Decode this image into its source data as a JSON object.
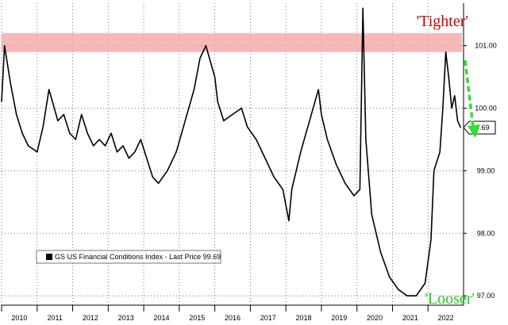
{
  "chart_data": {
    "type": "line",
    "title": "",
    "xlabel": "",
    "ylabel": "",
    "ylim": [
      96.85,
      101.68
    ],
    "xlim": [
      "2010-01-01",
      "2023-01-01"
    ],
    "x_ticks": [
      "2010",
      "2011",
      "2012",
      "2013",
      "2014",
      "2015",
      "2016",
      "2017",
      "2018",
      "2019",
      "2020",
      "2021",
      "2022"
    ],
    "y_ticks": [
      "97.00",
      "98.00",
      "99.00",
      "100.00",
      "101.00"
    ],
    "grid": true,
    "legend": {
      "placement": "bottom-left",
      "entries": [
        "GS US Financial Conditions Index - Last Price 99.69"
      ]
    },
    "series": [
      {
        "name": "GS US Financial Conditions Index",
        "color": "#000000",
        "x": [
          "2010-01",
          "2010-02",
          "2010-04",
          "2010-06",
          "2010-08",
          "2010-10",
          "2011-01",
          "2011-03",
          "2011-05",
          "2011-08",
          "2011-10",
          "2011-12",
          "2012-02",
          "2012-04",
          "2012-06",
          "2012-08",
          "2012-10",
          "2012-12",
          "2013-02",
          "2013-04",
          "2013-06",
          "2013-08",
          "2013-10",
          "2013-12",
          "2014-02",
          "2014-04",
          "2014-06",
          "2014-09",
          "2014-12",
          "2015-03",
          "2015-06",
          "2015-08",
          "2015-10",
          "2016-01",
          "2016-02",
          "2016-04",
          "2016-07",
          "2016-10",
          "2016-12",
          "2017-03",
          "2017-06",
          "2017-09",
          "2017-12",
          "2018-02",
          "2018-03",
          "2018-06",
          "2018-09",
          "2018-12",
          "2019-01",
          "2019-03",
          "2019-06",
          "2019-09",
          "2019-12",
          "2020-02",
          "2020-03",
          "2020-04",
          "2020-06",
          "2020-09",
          "2020-12",
          "2021-03",
          "2021-06",
          "2021-09",
          "2021-12",
          "2022-02",
          "2022-03",
          "2022-05",
          "2022-06",
          "2022-07",
          "2022-08",
          "2022-09",
          "2022-10",
          "2022-11",
          "2022-12"
        ],
        "y": [
          100.1,
          101.0,
          100.4,
          99.9,
          99.6,
          99.4,
          99.3,
          99.7,
          100.3,
          99.8,
          99.9,
          99.6,
          99.5,
          99.9,
          99.6,
          99.4,
          99.5,
          99.4,
          99.6,
          99.3,
          99.4,
          99.2,
          99.3,
          99.5,
          99.2,
          98.9,
          98.8,
          99.0,
          99.3,
          99.8,
          100.3,
          100.8,
          101.0,
          100.5,
          100.1,
          99.8,
          99.9,
          100.0,
          99.7,
          99.5,
          99.2,
          98.9,
          98.7,
          98.2,
          98.7,
          99.3,
          99.8,
          100.3,
          99.9,
          99.5,
          99.1,
          98.8,
          98.6,
          98.7,
          101.6,
          99.5,
          98.3,
          97.7,
          97.3,
          97.1,
          97.0,
          97.0,
          97.2,
          97.9,
          99.0,
          99.3,
          100.0,
          100.9,
          100.5,
          100.0,
          100.2,
          99.8,
          99.69
        ]
      }
    ],
    "annotations": [
      {
        "text": "'Tighter'",
        "color": "#cc0000"
      },
      {
        "text": "'Looser'",
        "color": "#22cc22"
      }
    ],
    "highlight_band": {
      "from": 100.9,
      "to": 101.2,
      "color": "#f4a0a0"
    },
    "last_price_label": "99.69"
  }
}
